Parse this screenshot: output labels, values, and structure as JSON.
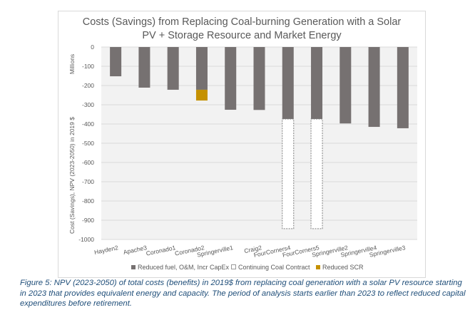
{
  "chart_data": {
    "type": "bar",
    "stacked": true,
    "title": "Costs (Savings) from Replacing Coal-burning Generation with a Solar PV + Storage Resource and Market Energy",
    "title_lines": [
      "Costs (Savings) from Replacing Coal-burning Generation with a Solar",
      "PV + Storage Resource and Market Energy"
    ],
    "ylabel": "Cost (Savings), NPV (2023-2050) in 2019 $",
    "yunits": "Millions",
    "xlabel": "",
    "ylim": [
      -1000,
      0
    ],
    "yticks": [
      0,
      -100,
      -200,
      -300,
      -400,
      -500,
      -600,
      -700,
      -800,
      -900,
      -1000
    ],
    "grid": true,
    "legend_position": "bottom",
    "categories": [
      "Hayden2",
      "Apache3",
      "Coronado1",
      "Coronado2",
      "Springerville1",
      "Craig2",
      "FourCorners4",
      "FourCorners5",
      "Springerville2",
      "Springerville4",
      "Springerville3"
    ],
    "series": [
      {
        "name": "Reduced fuel, O&M, Incr CapEx",
        "color": "#767171",
        "style": "solid",
        "values": [
          -152,
          -211,
          -222,
          -222,
          -326,
          -327,
          -374,
          -374,
          -397,
          -415,
          -422
        ]
      },
      {
        "name": "Continuing Coal Contract",
        "color": "#ffffff",
        "style": "dashed-outline",
        "values": [
          0,
          0,
          0,
          0,
          0,
          0,
          -570,
          -570,
          0,
          0,
          0
        ]
      },
      {
        "name": "Reduced SCR",
        "color": "#c59100",
        "style": "solid",
        "values": [
          0,
          0,
          0,
          -56,
          0,
          0,
          0,
          0,
          0,
          0,
          0
        ]
      }
    ]
  },
  "caption": "Figure 5: NPV (2023-2050) of total costs (benefits) in 2019$ from replacing coal generation with a solar PV resource starting in 2023 that provides equivalent energy and capacity. The period of analysis starts earlier than 2023 to reflect reduced capital expenditures before retirement."
}
